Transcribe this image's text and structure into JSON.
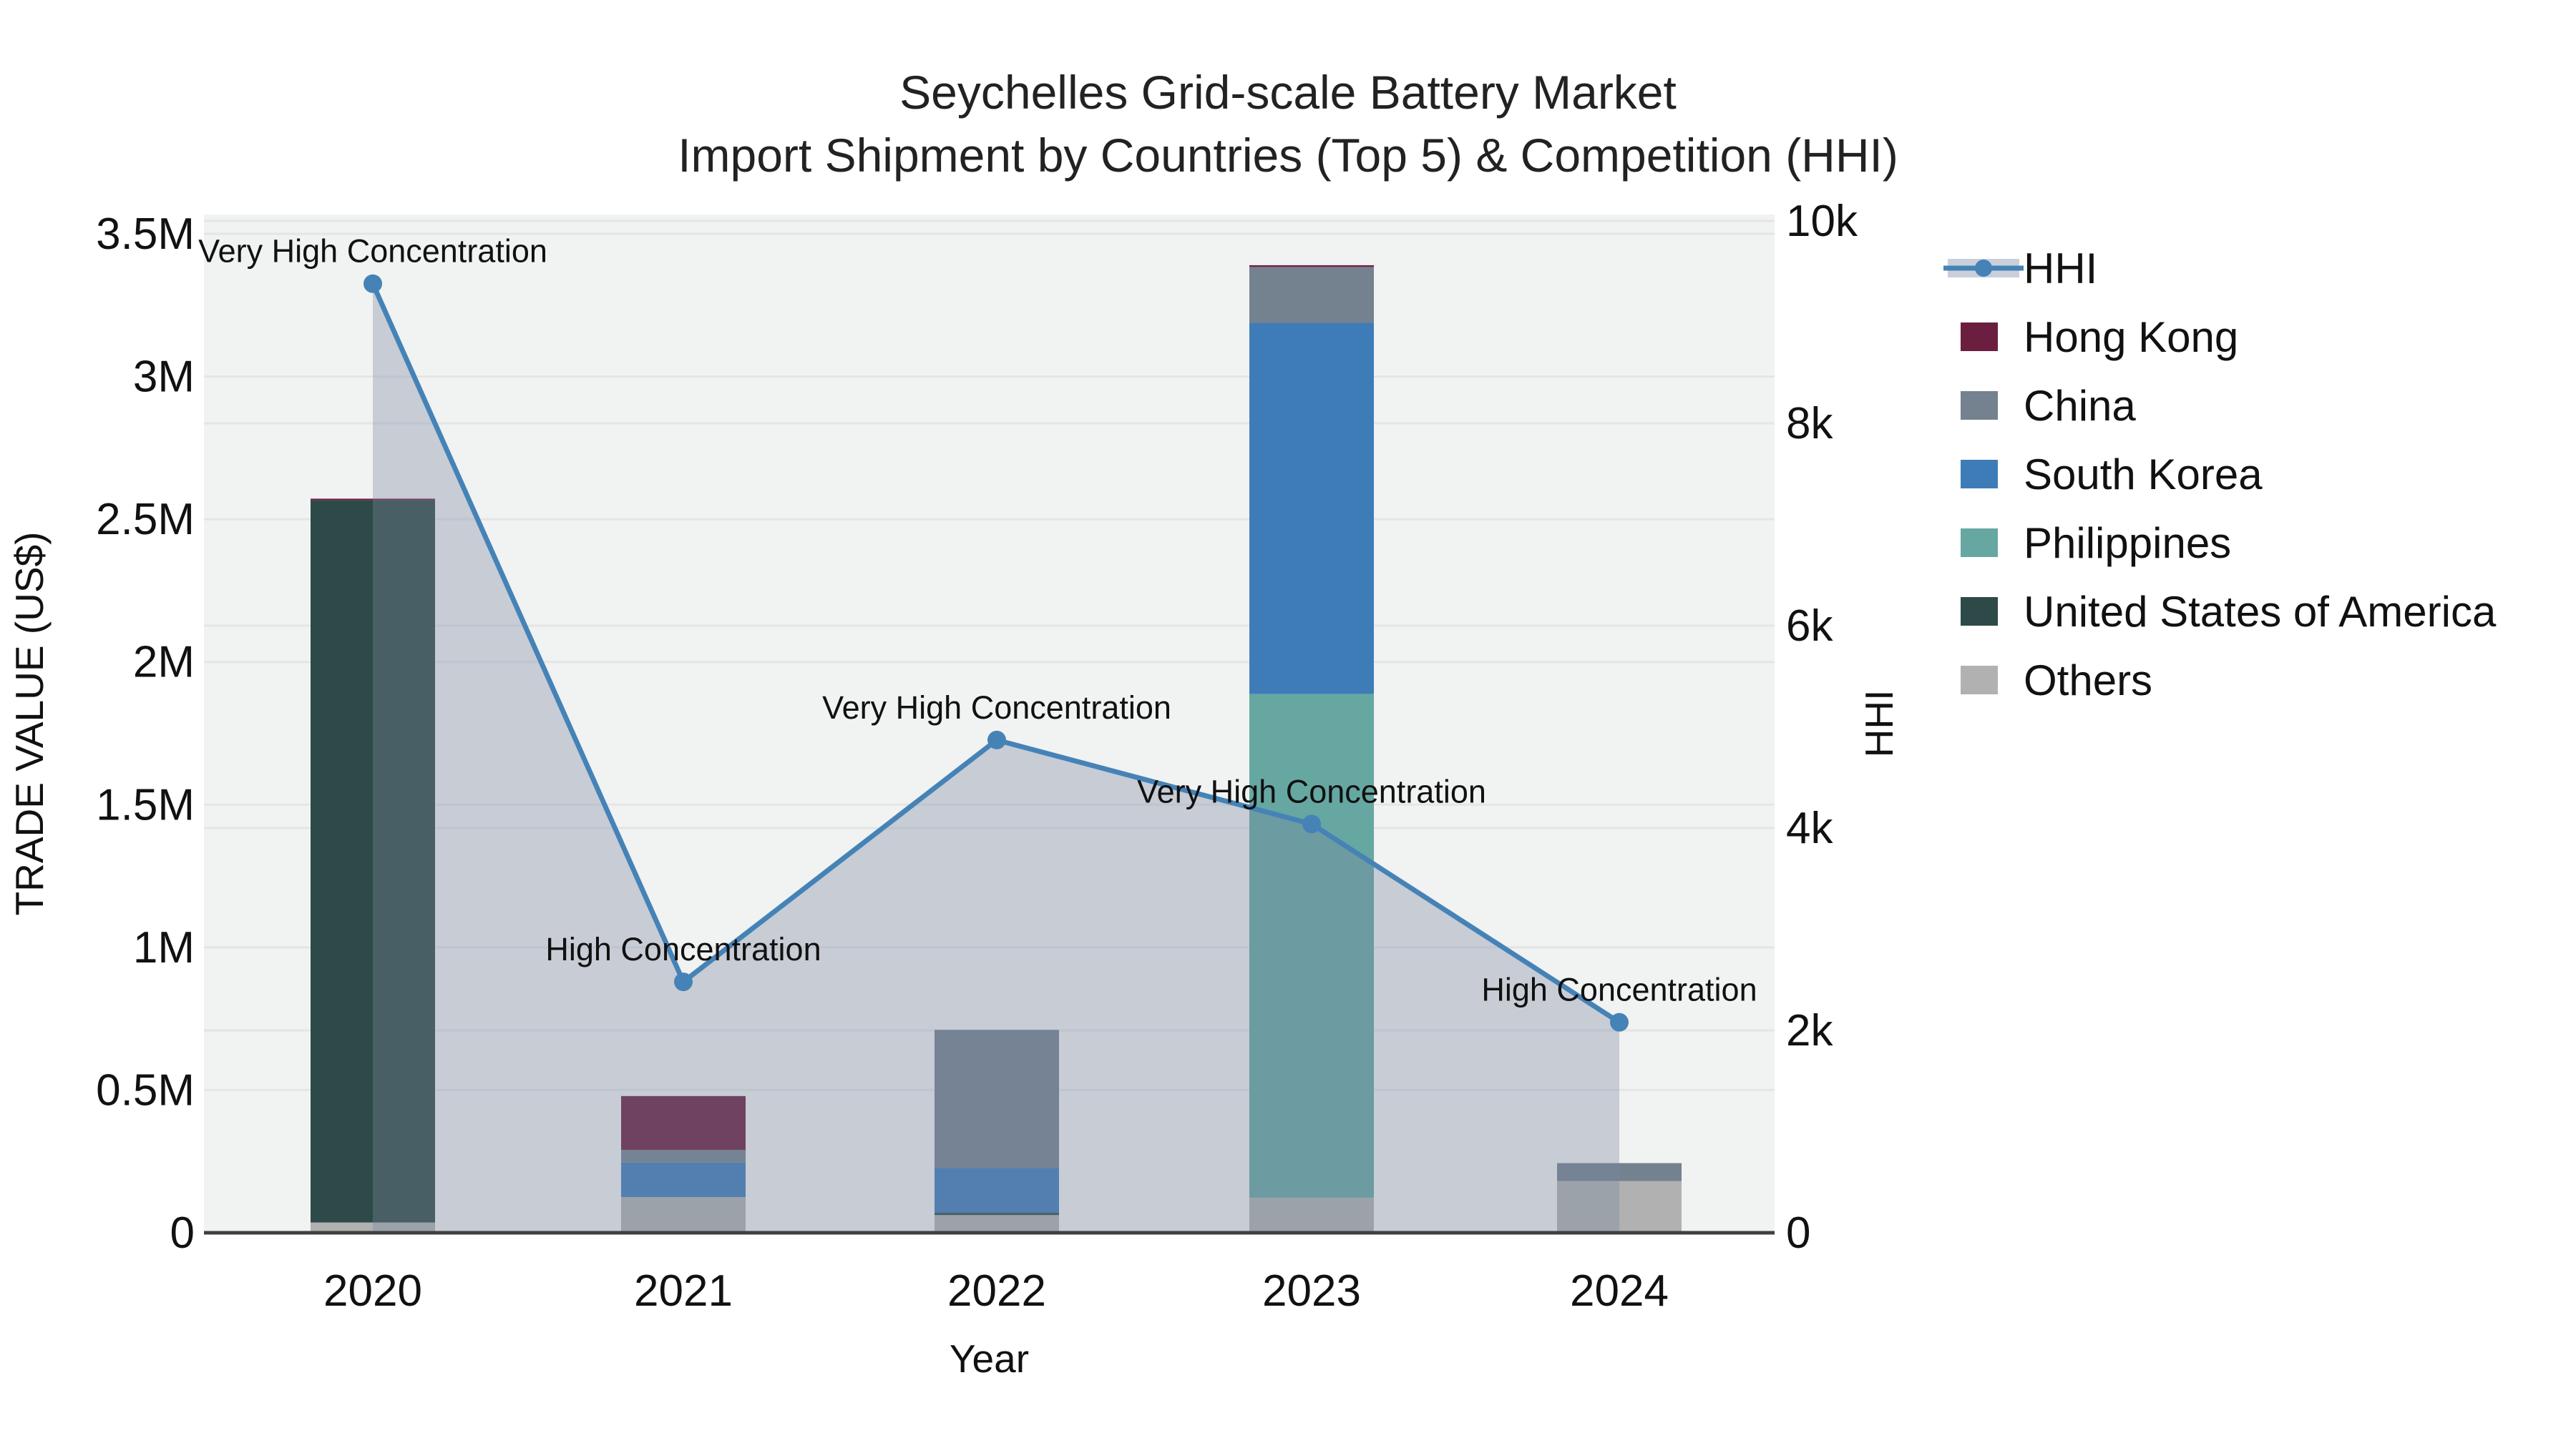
{
  "title": {
    "line1": "Seychelles Grid-scale Battery Market",
    "line2": "Import Shipment by Countries (Top 5) & Competition (HHI)"
  },
  "axes": {
    "x": {
      "label": "Year",
      "ticks": [
        "2020",
        "2021",
        "2022",
        "2023",
        "2024"
      ]
    },
    "y_left": {
      "label": "TRADE VALUE (US$)",
      "ticks": [
        {
          "label": "0",
          "value": 0
        },
        {
          "label": "0.5M",
          "value": 500000
        },
        {
          "label": "1M",
          "value": 1000000
        },
        {
          "label": "1.5M",
          "value": 1500000
        },
        {
          "label": "2M",
          "value": 2000000
        },
        {
          "label": "2.5M",
          "value": 2500000
        },
        {
          "label": "3M",
          "value": 3000000
        },
        {
          "label": "3.5M",
          "value": 3500000
        }
      ],
      "max": 3500000
    },
    "y_right": {
      "label": "HHI",
      "ticks": [
        {
          "label": "0",
          "value": 0
        },
        {
          "label": "2k",
          "value": 2000
        },
        {
          "label": "4k",
          "value": 4000
        },
        {
          "label": "6k",
          "value": 6000
        },
        {
          "label": "8k",
          "value": 8000
        },
        {
          "label": "10k",
          "value": 10000
        }
      ],
      "max": 10000
    }
  },
  "legend": {
    "items": [
      {
        "label": "HHI",
        "type": "line",
        "color": "#4583b7",
        "band": "#c9cfdb"
      },
      {
        "label": "Hong Kong",
        "type": "swatch",
        "color": "#6b1e40"
      },
      {
        "label": "China",
        "type": "swatch",
        "color": "#74818f"
      },
      {
        "label": "South Korea",
        "type": "swatch",
        "color": "#3e7cb8"
      },
      {
        "label": "Philippines",
        "type": "swatch",
        "color": "#66a7a2"
      },
      {
        "label": "United States of America",
        "type": "swatch",
        "color": "#2e4a48"
      },
      {
        "label": "Others",
        "type": "swatch",
        "color": "#b0b1b0"
      }
    ]
  },
  "chart_data": {
    "type": "bar+line",
    "categories": [
      "2020",
      "2021",
      "2022",
      "2023",
      "2024"
    ],
    "bar_value_unit": "US$",
    "series": [
      {
        "key": "hong_kong",
        "name": "Hong Kong",
        "color": "#6b1e40",
        "values": [
          6000,
          189000,
          0,
          6000,
          0
        ]
      },
      {
        "key": "china",
        "name": "China",
        "color": "#74818f",
        "values": [
          0,
          44000,
          484000,
          196000,
          63000
        ]
      },
      {
        "key": "south_korea",
        "name": "South Korea",
        "color": "#3e7cb8",
        "values": [
          0,
          121000,
          157000,
          1300000,
          0
        ]
      },
      {
        "key": "philippines",
        "name": "Philippines",
        "color": "#66a7a2",
        "values": [
          0,
          0,
          0,
          1765000,
          0
        ]
      },
      {
        "key": "usa",
        "name": "United States of America",
        "color": "#2e4a48",
        "values": [
          2530000,
          0,
          8000,
          0,
          0
        ]
      },
      {
        "key": "others",
        "name": "Others",
        "color": "#b0b1b0",
        "values": [
          36000,
          125000,
          62000,
          123000,
          181000
        ]
      }
    ],
    "stack_order_bottom_to_top": [
      "others",
      "usa",
      "philippines",
      "south_korea",
      "china",
      "hong_kong"
    ],
    "hhi": {
      "name": "HHI",
      "values": [
        9380,
        2480,
        4870,
        4040,
        2080
      ],
      "line_color": "#4583b7",
      "marker_color": "#4583b7",
      "area_fill": "rgba(120,134,160,0.35)"
    },
    "annotations": [
      {
        "x_index": 0,
        "text": "Very High Concentration"
      },
      {
        "x_index": 1,
        "text": "High Concentration"
      },
      {
        "x_index": 2,
        "text": "Very High Concentration"
      },
      {
        "x_index": 3,
        "text": "Very High Concentration"
      },
      {
        "x_index": 4,
        "text": "High Concentration"
      }
    ],
    "xlabel": "Year",
    "ylabel_left": "TRADE VALUE (US$)",
    "ylabel_right": "HHI",
    "ylim_left": [
      0,
      3500000
    ],
    "ylim_right": [
      0,
      10000
    ],
    "grid": true,
    "legend_position": "right"
  },
  "colors": {
    "plot_bg": "#f1f2f2",
    "grid": "#e4e6e6",
    "axis_line": "#3f3f3f",
    "text": "#111111"
  }
}
